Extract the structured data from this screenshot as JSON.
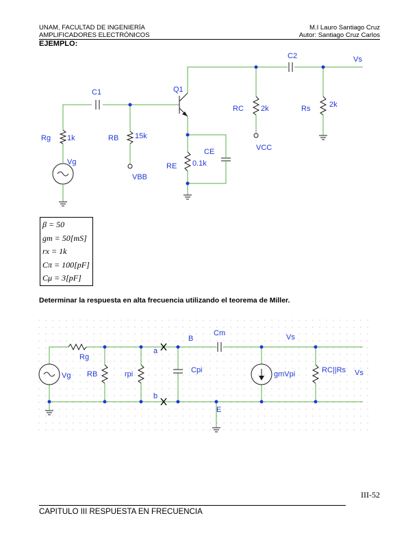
{
  "header": {
    "institution": "UNAM, FACULTAD DE INGENIERÍA",
    "course": "AMPLIFICADORES ELECTRÓNICOS",
    "professor": "M.I Lauro Santiago Cruz",
    "author": "Autor: Santiago Cruz Carlos"
  },
  "section_title": "EJEMPLO:",
  "circuit1": {
    "c1": "C1",
    "c2": "C2",
    "q1": "Q1",
    "vs": "Vs",
    "rc": "RC",
    "rc_val": "2k",
    "rs": "Rs",
    "rs_val": "2k",
    "rg": "Rg",
    "rg_val": "1k",
    "rb": "RB",
    "rb_val": "15k",
    "ce": "CE",
    "re": "RE",
    "re_val": "0.1k",
    "vg": "Vg",
    "vbb": "VBB",
    "vcc": "VCC"
  },
  "params": [
    "β = 50",
    "gm = 50[mS]",
    "rx = 1k",
    "Cπ = 100[pF]",
    "Cμ = 3[pF]"
  ],
  "question": "Determinar la respuesta en alta frecuencia utilizando el teorema de Miller.",
  "circuit2": {
    "rg": "Rg",
    "vg": "Vg",
    "rb": "RB",
    "rpi": "rpi",
    "a": "a",
    "b": "b",
    "node_b": "B",
    "cm": "Cm",
    "vs_top": "Vs",
    "cpi": "Cpi",
    "gmvpi": "gmVpi",
    "rcrs": "RC||Rs",
    "vs_right": "Vs",
    "e": "E"
  },
  "footer": {
    "page": "III-52",
    "chapter": "CAPITULO III RESPUESTA EN FRECUENCIA"
  }
}
